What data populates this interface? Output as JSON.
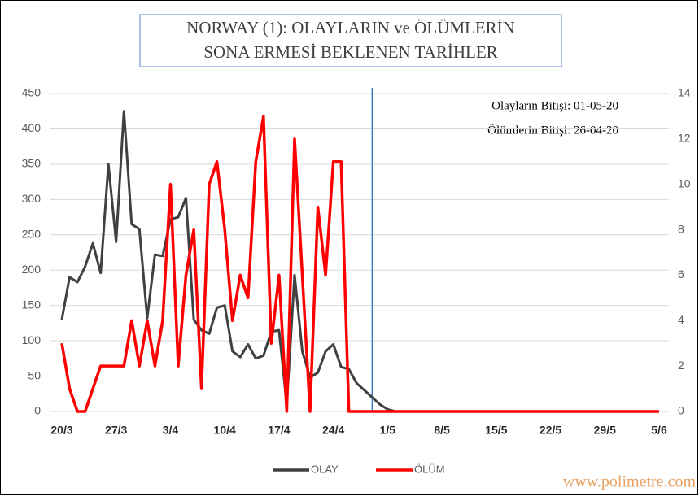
{
  "chart_data": {
    "type": "line",
    "title_lines": [
      "NORWAY (1): OLAYLARIN  ve ÖLÜMLERİN",
      "SONA ERMESİ BEKLENEN TARİHLER"
    ],
    "annotations": [
      "Olayların Bitişi: 01-05-20",
      "Ölümlerin Bitişi: 26-04-20"
    ],
    "watermark": "www.polimetre.com",
    "categories": [
      "20/3",
      null,
      null,
      null,
      null,
      null,
      null,
      "27/3",
      null,
      null,
      null,
      null,
      null,
      null,
      "3/4",
      null,
      null,
      null,
      null,
      null,
      null,
      "10/4",
      null,
      null,
      null,
      null,
      null,
      null,
      "17/4",
      null,
      null,
      null,
      null,
      null,
      null,
      "24/4",
      null,
      null,
      null,
      null,
      null,
      null,
      "1/5",
      null,
      null,
      null,
      null,
      null,
      null,
      "8/5",
      null,
      null,
      null,
      null,
      null,
      null,
      "15/5",
      null,
      null,
      null,
      null,
      null,
      null,
      "22/5",
      null,
      null,
      null,
      null,
      null,
      null,
      "29/5",
      null,
      null,
      null,
      null,
      null,
      null,
      "5/6"
    ],
    "vertical_line_index": 40,
    "series": [
      {
        "name": "OLAY",
        "color": "#404040",
        "axis": "y",
        "values": [
          130,
          190,
          183,
          205,
          238,
          196,
          350,
          240,
          425,
          265,
          258,
          132,
          222,
          220,
          272,
          275,
          302,
          130,
          115,
          110,
          147,
          150,
          85,
          77,
          95,
          75,
          79,
          113,
          115,
          10,
          193,
          85,
          48,
          55,
          85,
          95,
          63,
          60,
          40,
          30,
          20,
          10,
          3,
          0,
          0,
          0,
          0,
          0,
          0,
          0,
          0,
          0,
          0,
          0,
          0,
          0,
          0,
          0,
          0,
          0,
          0,
          0,
          0,
          0,
          0,
          0,
          0,
          0,
          0,
          0,
          0,
          0,
          0,
          0,
          0,
          0,
          0,
          0
        ]
      },
      {
        "name": "ÖLÜM",
        "color": "#ff0000",
        "axis": "y2",
        "values": [
          3,
          1,
          0,
          0,
          1,
          2,
          2,
          2,
          2,
          4,
          2,
          4,
          2,
          4,
          10,
          2,
          6,
          8,
          1,
          10,
          11,
          8,
          4,
          6,
          5,
          11,
          13,
          3,
          6,
          0,
          12,
          6,
          0,
          9,
          6,
          11,
          11,
          0,
          0,
          0,
          0,
          0,
          0,
          0,
          0,
          0,
          0,
          0,
          0,
          0,
          0,
          0,
          0,
          0,
          0,
          0,
          0,
          0,
          0,
          0,
          0,
          0,
          0,
          0,
          0,
          0,
          0,
          0,
          0,
          0,
          0,
          0,
          0,
          0,
          0,
          0,
          0,
          0
        ]
      }
    ],
    "ylim": [
      0,
      450
    ],
    "yticks": [
      0,
      50,
      100,
      150,
      200,
      250,
      300,
      350,
      400,
      450
    ],
    "y2lim": [
      0,
      14
    ],
    "y2ticks": [
      0,
      2,
      4,
      6,
      8,
      10,
      12,
      14
    ],
    "grid": true,
    "legend": "bottom"
  }
}
